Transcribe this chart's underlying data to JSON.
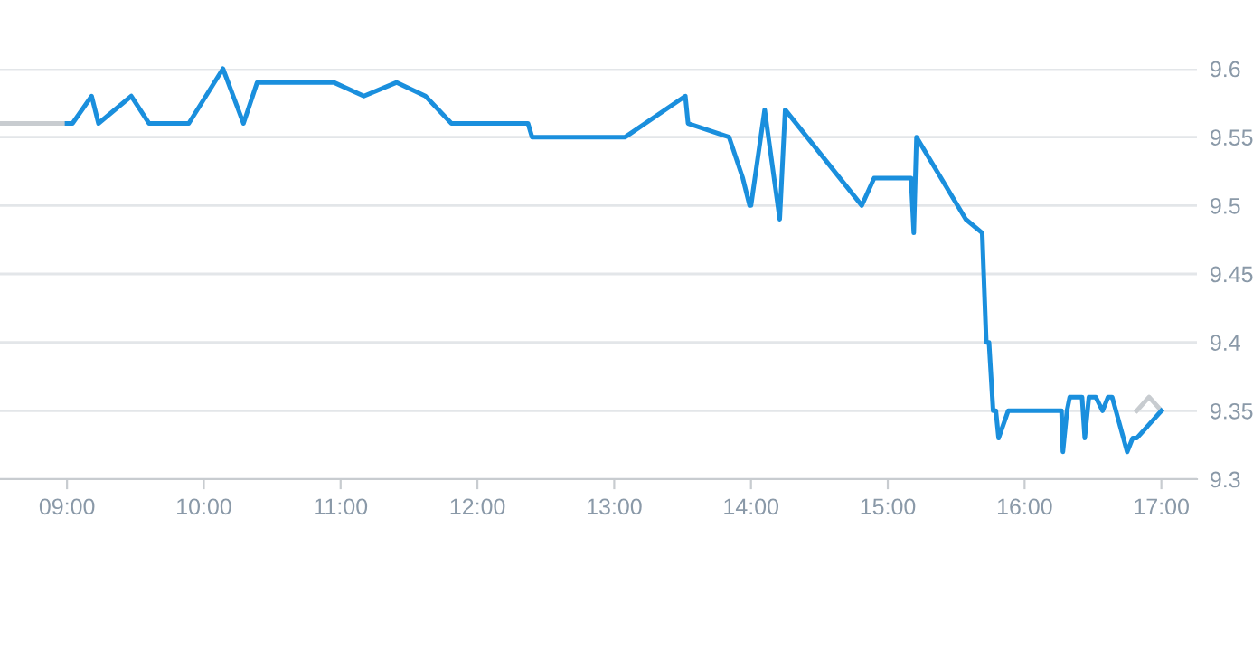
{
  "chart_data": {
    "type": "line",
    "xlim": [
      8.51,
      17.26
    ],
    "ylim": [
      9.3,
      9.6
    ],
    "xticks": [
      {
        "value": 9,
        "label": "09:00"
      },
      {
        "value": 10,
        "label": "10:00"
      },
      {
        "value": 11,
        "label": "11:00"
      },
      {
        "value": 12,
        "label": "12:00"
      },
      {
        "value": 13,
        "label": "13:00"
      },
      {
        "value": 14,
        "label": "14:00"
      },
      {
        "value": 15,
        "label": "15:00"
      },
      {
        "value": 16,
        "label": "16:00"
      },
      {
        "value": 17,
        "label": "17:00"
      }
    ],
    "yticks": [
      9.3,
      9.35,
      9.4,
      9.45,
      9.5,
      9.55,
      9.6
    ],
    "grid": "y",
    "legend": false,
    "marker": "none",
    "line_style": "solid",
    "series": [
      {
        "color": "#c8ccd0",
        "x": [
          8.51,
          9.0
        ],
        "values": [
          9.56,
          9.56
        ]
      },
      {
        "color": "#c8ccd0",
        "x": [
          16.82,
          16.91,
          17.0
        ],
        "values": [
          9.35,
          9.36,
          9.35
        ]
      },
      {
        "color": "#1a8fdd",
        "x": [
          9.0,
          9.04,
          9.18,
          9.23,
          9.47,
          9.6,
          9.89,
          10.14,
          10.29,
          10.39,
          10.95,
          11.17,
          11.41,
          11.62,
          11.81,
          12.37,
          12.4,
          13.08,
          13.52,
          13.54,
          13.84,
          13.94,
          13.99,
          14.0,
          14.1,
          14.21,
          14.25,
          14.81,
          14.9,
          15.17,
          15.19,
          15.21,
          15.57,
          15.69,
          15.72,
          15.74,
          15.77,
          15.79,
          15.81,
          15.88,
          16.27,
          16.28,
          16.31,
          16.33,
          16.42,
          16.44,
          16.47,
          16.52,
          16.57,
          16.61,
          16.64,
          16.75,
          16.79,
          16.82,
          17.0
        ],
        "values": [
          9.56,
          9.56,
          9.58,
          9.56,
          9.58,
          9.56,
          9.56,
          9.6,
          9.56,
          9.59,
          9.59,
          9.58,
          9.59,
          9.58,
          9.56,
          9.56,
          9.55,
          9.55,
          9.58,
          9.56,
          9.55,
          9.52,
          9.5,
          9.5,
          9.57,
          9.49,
          9.57,
          9.5,
          9.52,
          9.52,
          9.48,
          9.55,
          9.49,
          9.48,
          9.4,
          9.4,
          9.35,
          9.35,
          9.33,
          9.35,
          9.35,
          9.32,
          9.35,
          9.36,
          9.36,
          9.33,
          9.36,
          9.36,
          9.35,
          9.36,
          9.36,
          9.32,
          9.33,
          9.33,
          9.35
        ]
      }
    ]
  }
}
